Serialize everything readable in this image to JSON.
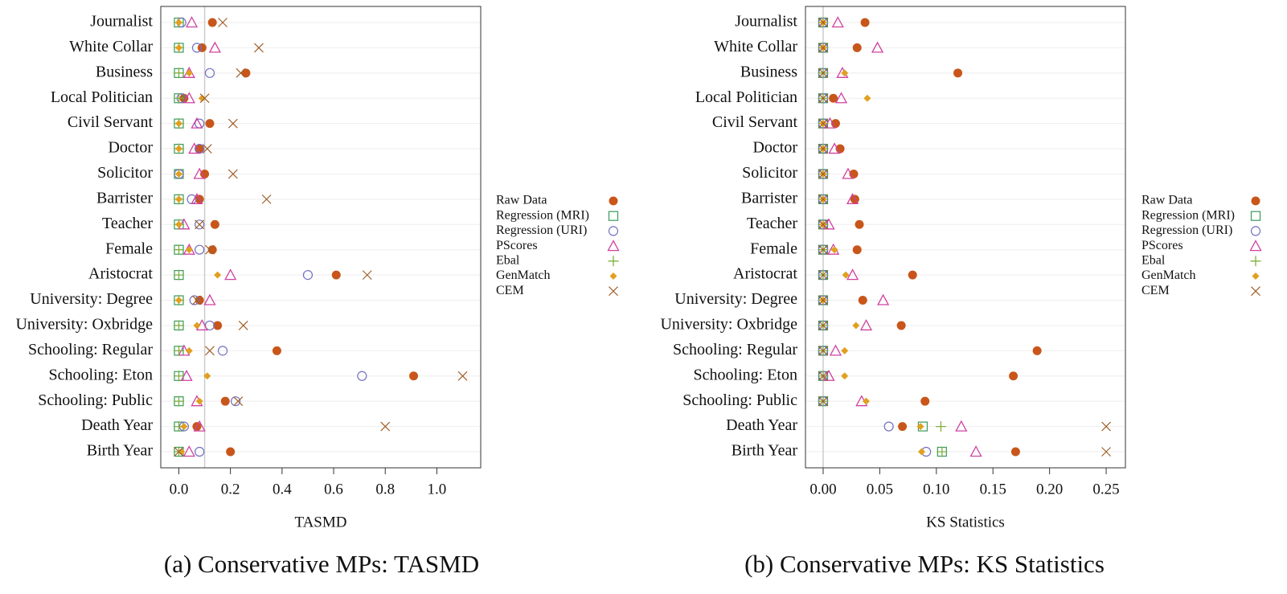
{
  "chart_data": [
    {
      "type": "dot",
      "caption": "(a) Conservative MPs: TASMD",
      "xlabel": "TASMD",
      "categories": [
        "Journalist",
        "White Collar",
        "Business",
        "Local Politician",
        "Civil Servant",
        "Doctor",
        "Solicitor",
        "Barrister",
        "Teacher",
        "Female",
        "Aristocrat",
        "University: Degree",
        "University: Oxbridge",
        "Schooling: Regular",
        "Schooling: Eton",
        "Schooling: Public",
        "Death Year",
        "Birth Year"
      ],
      "xlim": [
        -0.07,
        1.17
      ],
      "xticks": [
        {
          "value": 0,
          "label": "0.0"
        },
        0.2,
        0.4,
        0.6,
        0.8,
        {
          "value": 1,
          "label": "1.0"
        }
      ],
      "ref_line": 0.1,
      "grid": true,
      "series": [
        {
          "name": "Raw Data",
          "color": "#c8561a",
          "marker": "circle-filled",
          "values": [
            0.13,
            0.09,
            0.26,
            0.02,
            0.12,
            0.08,
            0.1,
            0.08,
            0.14,
            0.13,
            0.61,
            0.08,
            0.15,
            0.38,
            0.91,
            0.18,
            0.07,
            0.2
          ]
        },
        {
          "name": "Regression (MRI)",
          "color": "#3a9a5a",
          "marker": "square-open",
          "values": [
            0,
            0,
            0,
            0,
            0,
            0,
            0,
            0,
            0,
            0,
            0,
            0,
            0,
            0,
            0,
            0,
            0,
            0
          ]
        },
        {
          "name": "Regression (URI)",
          "color": "#7070c0",
          "marker": "circle-open",
          "values": [
            0.01,
            0.07,
            0.12,
            0.01,
            0.08,
            0.08,
            0,
            0.05,
            0.08,
            0.08,
            0.5,
            0.06,
            0.12,
            0.17,
            0.71,
            0.22,
            0.02,
            0.08
          ]
        },
        {
          "name": "PScores",
          "color": "#d040a0",
          "marker": "triangle-open",
          "values": [
            0.05,
            0.14,
            0.04,
            0.04,
            0.07,
            0.06,
            0.08,
            0.07,
            0.02,
            0.04,
            0.2,
            0.12,
            0.09,
            0.02,
            0.03,
            0.07,
            0.08,
            0.04
          ]
        },
        {
          "name": "Ebal",
          "color": "#80b040",
          "marker": "plus",
          "values": [
            0,
            0,
            0,
            0,
            0,
            0,
            0,
            0,
            0,
            0,
            0,
            0,
            0,
            0,
            0,
            0,
            0,
            0
          ]
        },
        {
          "name": "GenMatch",
          "color": "#e0a020",
          "marker": "diamond-filled",
          "values": [
            0,
            0,
            0.04,
            0.09,
            0,
            0,
            0,
            0,
            0,
            0.04,
            0.15,
            0,
            0.07,
            0.04,
            0.11,
            0.08,
            0.02,
            0.01
          ]
        },
        {
          "name": "CEM",
          "color": "#a0602a",
          "marker": "x",
          "values": [
            0.17,
            0.31,
            0.24,
            0.1,
            0.21,
            0.11,
            0.21,
            0.34,
            0.08,
            0.12,
            0.73,
            0.07,
            0.25,
            0.12,
            1.1,
            0.23,
            0.8,
            0
          ]
        }
      ]
    },
    {
      "type": "dot",
      "caption": "(b) Conservative MPs: KS Statistics",
      "xlabel": "KS Statistics",
      "categories": [
        "Journalist",
        "White Collar",
        "Business",
        "Local Politician",
        "Civil Servant",
        "Doctor",
        "Solicitor",
        "Barrister",
        "Teacher",
        "Female",
        "Aristocrat",
        "University: Degree",
        "University: Oxbridge",
        "Schooling: Regular",
        "Schooling: Eton",
        "Schooling: Public",
        "Death Year",
        "Birth Year"
      ],
      "xlim": [
        -0.0156,
        0.267
      ],
      "xticks": [
        {
          "value": 0,
          "label": "0.00"
        },
        0.05,
        {
          "value": 0.1,
          "label": "0.10"
        },
        0.15,
        {
          "value": 0.2,
          "label": "0.20"
        },
        0.25
      ],
      "ref_line": 0,
      "grid": true,
      "series": [
        {
          "name": "Raw Data",
          "color": "#c8561a",
          "marker": "circle-filled",
          "values": [
            0.037,
            0.03,
            0.119,
            0.009,
            0.011,
            0.015,
            0.027,
            0.028,
            0.032,
            0.03,
            0.079,
            0.035,
            0.069,
            0.189,
            0.168,
            0.09,
            0.07,
            0.17
          ]
        },
        {
          "name": "Regression (MRI)",
          "color": "#3a9a5a",
          "marker": "square-open",
          "values": [
            0,
            0,
            0,
            0,
            0,
            0,
            0,
            0,
            0,
            0,
            0,
            0,
            0,
            0,
            0,
            0,
            0.088,
            0.105
          ]
        },
        {
          "name": "Regression (URI)",
          "color": "#7070c0",
          "marker": "circle-open",
          "values": [
            0,
            0,
            0,
            0,
            0,
            0,
            0,
            0,
            0,
            0,
            0,
            0,
            0,
            0,
            0,
            0,
            0.058,
            0.091
          ]
        },
        {
          "name": "PScores",
          "color": "#d040a0",
          "marker": "triangle-open",
          "values": [
            0.013,
            0.048,
            0.017,
            0.016,
            0.006,
            0.01,
            0.022,
            0.026,
            0.005,
            0.009,
            0.026,
            0.053,
            0.038,
            0.011,
            0.005,
            0.034,
            0.122,
            0.135
          ]
        },
        {
          "name": "Ebal",
          "color": "#80b040",
          "marker": "plus",
          "values": [
            0,
            0,
            0,
            0,
            0,
            0,
            0,
            0,
            0,
            0,
            0,
            0,
            0,
            0,
            0,
            0,
            0.104,
            0.105
          ]
        },
        {
          "name": "GenMatch",
          "color": "#e0a020",
          "marker": "diamond-filled",
          "values": [
            0,
            0,
            0.019,
            0.039,
            0,
            0,
            0,
            0,
            0,
            0.01,
            0.02,
            0,
            0.029,
            0.019,
            0.019,
            0.038,
            0.086,
            0.087
          ]
        },
        {
          "name": "CEM",
          "color": "#a0602a",
          "marker": "x",
          "values": [
            0,
            0,
            0,
            0,
            0,
            0,
            0,
            0,
            0,
            0,
            0,
            0,
            0,
            0,
            0,
            0,
            0.25,
            0.25
          ]
        }
      ]
    }
  ]
}
